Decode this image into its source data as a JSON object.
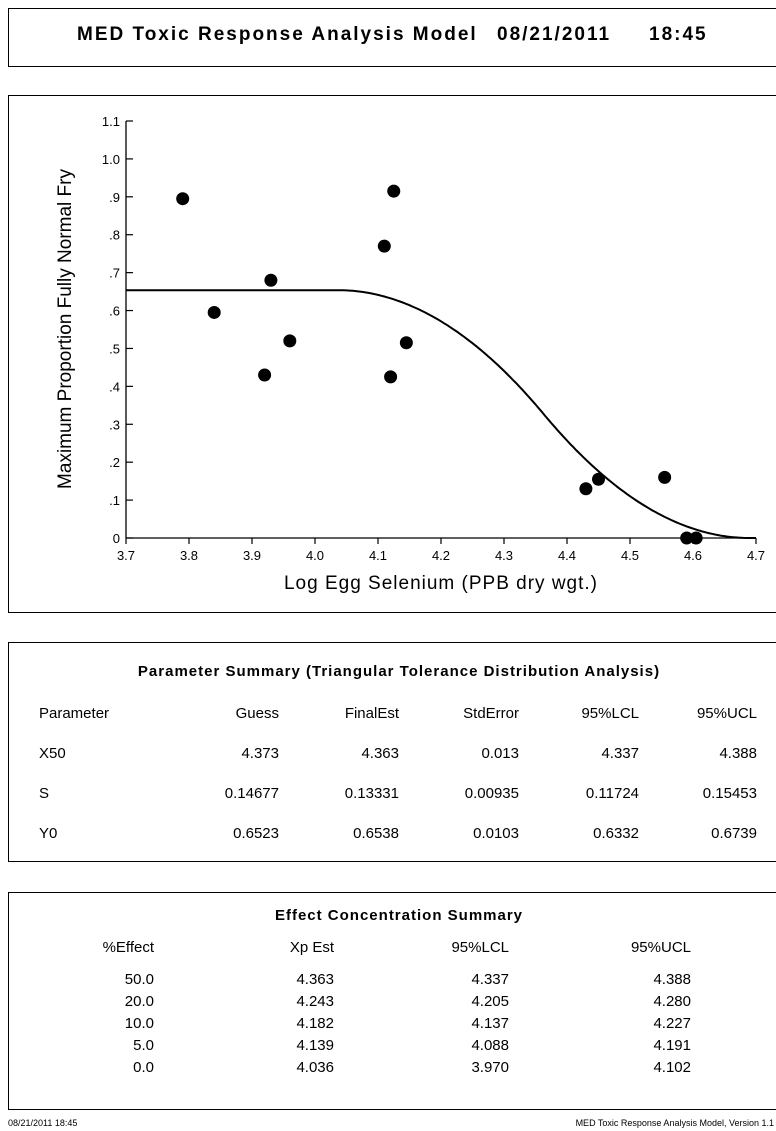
{
  "header": {
    "title": "MED Toxic Response Analysis Model",
    "date": "08/21/2011",
    "time": "18:45"
  },
  "chart_data": {
    "type": "scatter",
    "xlabel": "Log Egg Selenium (PPB dry wgt.)",
    "ylabel": "Maximum Proportion Fully Normal Fry",
    "xlim": [
      3.7,
      4.7
    ],
    "ylim": [
      0,
      1.1
    ],
    "x_ticks": [
      "3.7",
      "3.8",
      "3.9",
      "4.0",
      "4.1",
      "4.2",
      "4.3",
      "4.4",
      "4.5",
      "4.6",
      "4.7"
    ],
    "y_ticks": [
      "0",
      ".1",
      ".2",
      ".3",
      ".4",
      ".5",
      ".6",
      ".7",
      ".8",
      ".9",
      "1.0",
      "1.1"
    ],
    "grid": false,
    "points": [
      {
        "x": 3.79,
        "y": 0.895
      },
      {
        "x": 3.84,
        "y": 0.595
      },
      {
        "x": 3.92,
        "y": 0.43
      },
      {
        "x": 3.93,
        "y": 0.68
      },
      {
        "x": 3.96,
        "y": 0.52
      },
      {
        "x": 4.11,
        "y": 0.77
      },
      {
        "x": 4.12,
        "y": 0.425
      },
      {
        "x": 4.125,
        "y": 0.915
      },
      {
        "x": 4.145,
        "y": 0.515
      },
      {
        "x": 4.43,
        "y": 0.13
      },
      {
        "x": 4.45,
        "y": 0.155
      },
      {
        "x": 4.555,
        "y": 0.16
      },
      {
        "x": 4.59,
        "y": 0.0
      },
      {
        "x": 4.605,
        "y": 0.0
      }
    ],
    "fit": {
      "x50": 4.363,
      "s": 0.13331,
      "y0": 0.6538
    }
  },
  "params": {
    "title": "Parameter Summary (Triangular Tolerance Distribution Analysis)",
    "headers": [
      "Parameter",
      "Guess",
      "FinalEst",
      "StdError",
      "95%LCL",
      "95%UCL"
    ],
    "rows": [
      [
        "X50",
        "4.373",
        "4.363",
        "0.013",
        "4.337",
        "4.388"
      ],
      [
        "S",
        "0.14677",
        "0.13331",
        "0.00935",
        "0.11724",
        "0.15453"
      ],
      [
        "Y0",
        "0.6523",
        "0.6538",
        "0.0103",
        "0.6332",
        "0.6739"
      ]
    ]
  },
  "effects": {
    "title": "Effect Concentration Summary",
    "headers": [
      "%Effect",
      "Xp Est",
      "95%LCL",
      "95%UCL"
    ],
    "rows": [
      [
        "50.0",
        "4.363",
        "4.337",
        "4.388"
      ],
      [
        "20.0",
        "4.243",
        "4.205",
        "4.280"
      ],
      [
        "10.0",
        "4.182",
        "4.137",
        "4.227"
      ],
      [
        "5.0",
        "4.139",
        "4.088",
        "4.191"
      ],
      [
        "0.0",
        "4.036",
        "3.970",
        "4.102"
      ]
    ]
  },
  "footer": {
    "left": "08/21/2011   18:45",
    "right": "MED Toxic Response Analysis Model, Version 1.1"
  }
}
